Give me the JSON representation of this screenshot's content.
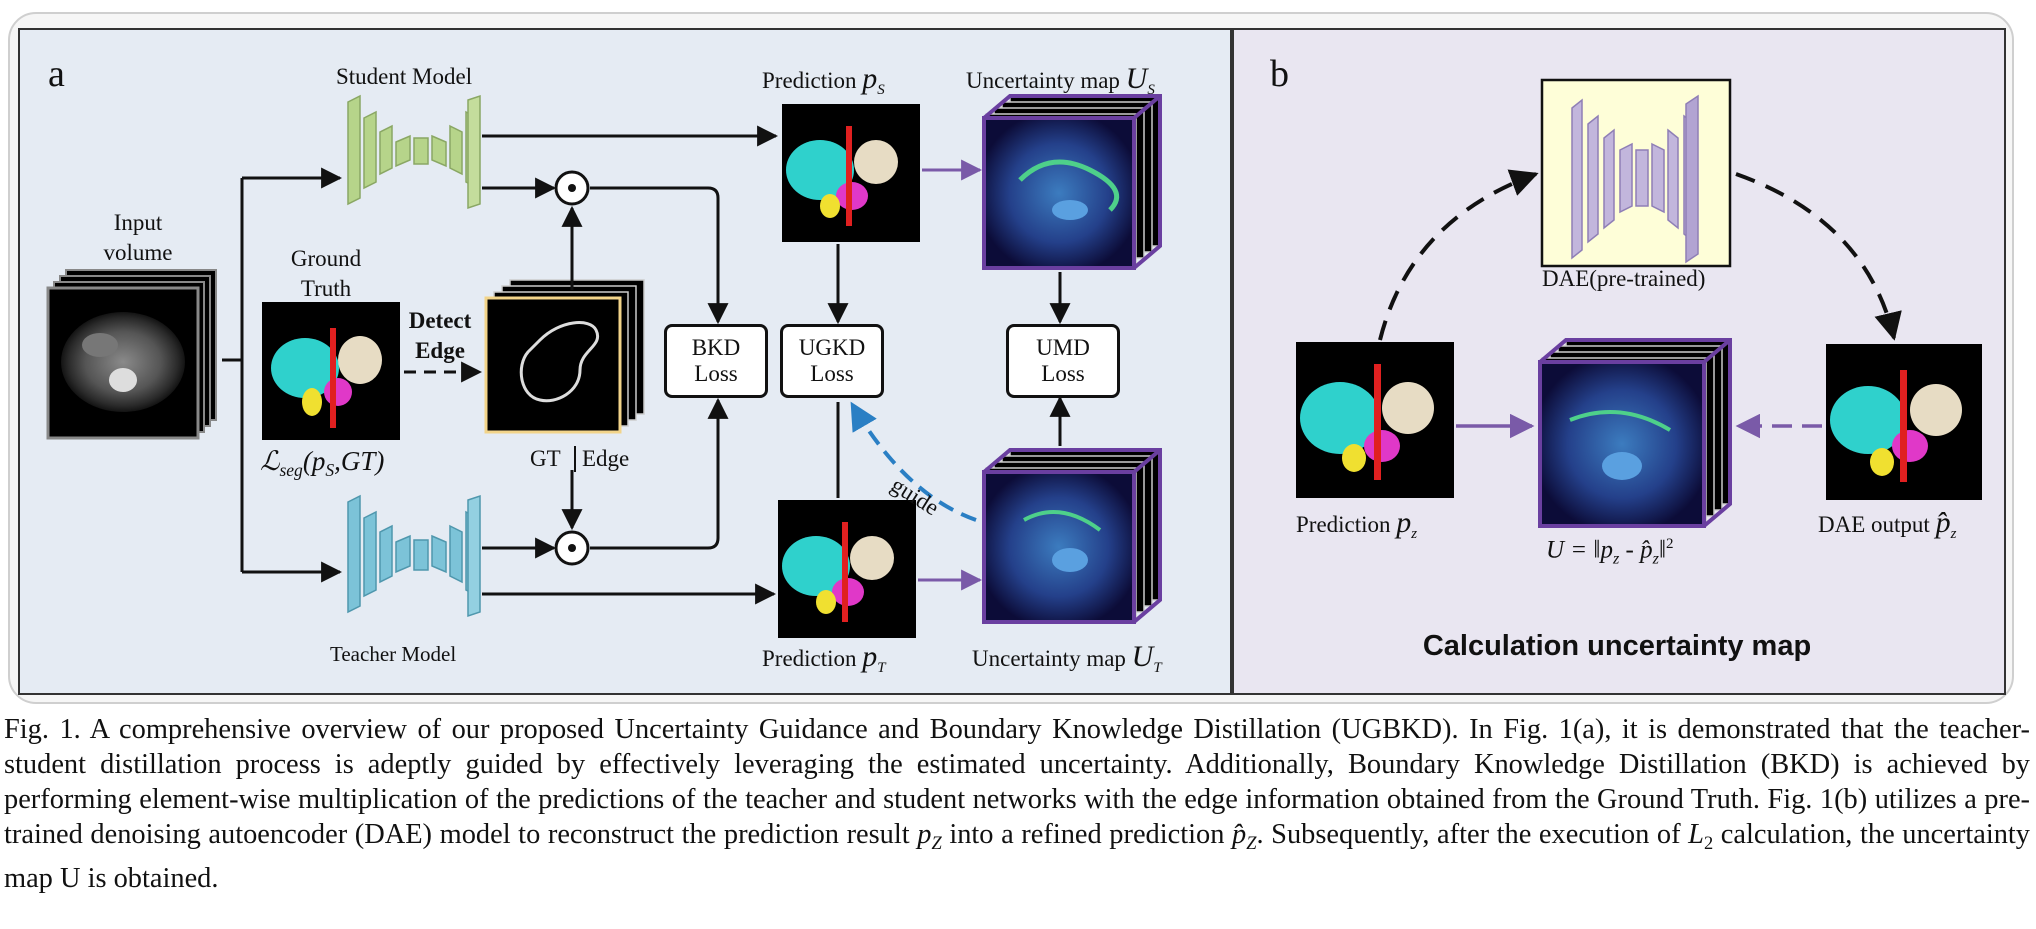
{
  "panel_a": {
    "letter": "a",
    "student_model": "Student Model",
    "teacher_model": "Teacher Model",
    "input_volume": "Input\nvolume",
    "ground_truth": "Ground\nTruth",
    "detect_edge": "Detect\nEdge",
    "gt": "GT",
    "edge": "Edge",
    "seg_loss_prefix": "ℒ",
    "seg_loss_sub": "seg",
    "seg_loss_args": "(p",
    "seg_loss_args_sub": "S",
    "seg_loss_args_end": ",GT)",
    "bkd_loss": "BKD\nLoss",
    "ugkd_loss": "UGKD\nLoss",
    "umd_loss": "UMD\nLoss",
    "guide": "guide",
    "prediction_word": "Prediction",
    "pred_s_sym": "p",
    "pred_s_sub": "S",
    "pred_t_sym": "p",
    "pred_t_sub": "T",
    "uncert_word": "Uncertainty map",
    "uncert_s_sym": "U",
    "uncert_s_sub": "S",
    "uncert_t_sym": "U",
    "uncert_t_sub": "T",
    "odot": "⊙"
  },
  "panel_b": {
    "letter": "b",
    "dae_label": "DAE(pre-trained)",
    "prediction_word": "Prediction",
    "pred_sym": "p",
    "pred_sub": "z",
    "dae_output_word": "DAE output",
    "dae_output_sym": "p̂",
    "dae_output_sub": "z",
    "formula": "U = ‖p",
    "formula_sub1": "z",
    "formula_mid": " - p̂",
    "formula_sub2": "z",
    "formula_end": "‖",
    "formula_sup": "2",
    "title": "Calculation uncertainty map"
  },
  "caption": {
    "part1": "Fig. 1. A comprehensive overview of our proposed Uncertainty Guidance and Boundary Knowledge Distillation (UGBKD). In Fig. 1(a), it is demonstrated that the teacher-student distillation process is adeptly guided by effectively leveraging the estimated uncertainty. Additionally, Boundary Knowledge Distillation (BKD) is achieved by performing element-wise multiplication of the predictions of the teacher and student networks with the edge information obtained from the Ground Truth. Fig. 1(b) utilizes a pre-trained denoising autoencoder (DAE) model to reconstruct the prediction result ",
    "pz": "p",
    "pz_sub": "Z",
    "part2": " into a refined prediction ",
    "phz": "p̂",
    "phz_sub": "Z",
    "part3": ". Subsequently, after the execution of ",
    "l2": "L",
    "l2_sub": "2",
    "part4": " calculation, the uncertainty map U is obtained."
  },
  "colors": {
    "student": "#b6d48a",
    "teacher": "#7cc3d8",
    "dae": "#c2b6dc",
    "uncert_frame": "#6a3fa0",
    "guide": "#2a7fc4",
    "edge_frame": "#f2d48a"
  }
}
